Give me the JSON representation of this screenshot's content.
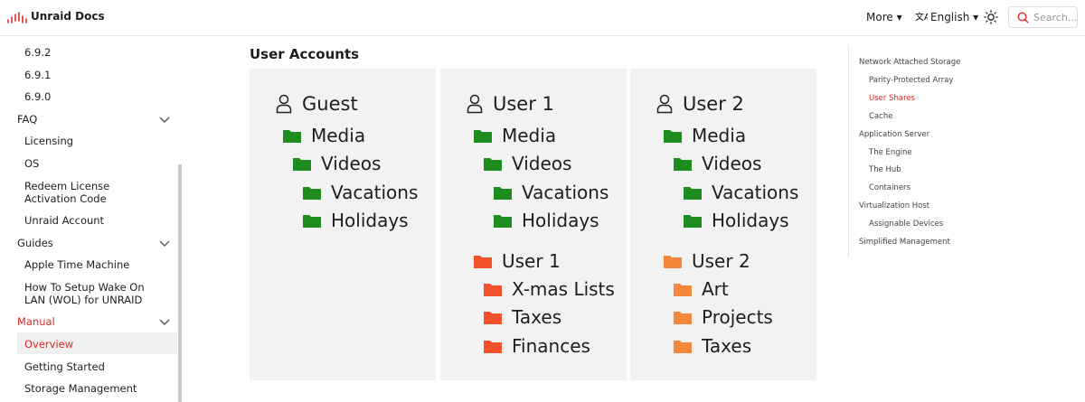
{
  "navbar": {
    "brand": "Unraid Docs",
    "more": "More",
    "language": "English",
    "search_placeholder": "Search..."
  },
  "sidebar": {
    "top_items": [
      "6.9.2",
      "6.9.1",
      "6.9.0"
    ],
    "sections": [
      {
        "title": "FAQ",
        "items": [
          "Licensing",
          "OS",
          "Redeem License Activation Code",
          "Unraid Account"
        ]
      },
      {
        "title": "Guides",
        "items": [
          "Apple Time Machine",
          "How To Setup Wake On LAN (WOL) for UNRAID"
        ]
      },
      {
        "title": "Manual",
        "items": [
          "Overview",
          "Getting Started",
          "Storage Management"
        ]
      }
    ]
  },
  "main": {
    "title": "User Accounts",
    "accounts": [
      {
        "name": "Guest",
        "folders": [
          {
            "name": "Media",
            "color": "#1e8c1e",
            "children": [
              {
                "name": "Videos",
                "children": [
                  {
                    "name": "Vacations"
                  },
                  {
                    "name": "Holidays"
                  }
                ]
              }
            ]
          }
        ]
      },
      {
        "name": "User 1",
        "folders": [
          {
            "name": "Media",
            "color": "#1e8c1e",
            "children": [
              {
                "name": "Videos",
                "children": [
                  {
                    "name": "Vacations"
                  },
                  {
                    "name": "Holidays"
                  }
                ]
              }
            ]
          },
          {
            "name": "User 1",
            "color": "#f4522d",
            "children": [
              {
                "name": "X-mas Lists"
              },
              {
                "name": "Taxes"
              },
              {
                "name": "Finances"
              }
            ]
          }
        ]
      },
      {
        "name": "User 2",
        "folders": [
          {
            "name": "Media",
            "color": "#1e8c1e",
            "children": [
              {
                "name": "Videos",
                "children": [
                  {
                    "name": "Vacations"
                  },
                  {
                    "name": "Holidays"
                  }
                ]
              }
            ]
          },
          {
            "name": "User 2",
            "color": "#f4873a",
            "children": [
              {
                "name": "Art"
              },
              {
                "name": "Projects"
              },
              {
                "name": "Taxes"
              }
            ]
          }
        ]
      }
    ]
  },
  "toc": [
    {
      "label": "Network Attached Storage",
      "items": [
        "Parity-Protected Array",
        "User Shares",
        "Cache"
      ]
    },
    {
      "label": "Application Server",
      "items": [
        "The Engine",
        "The Hub",
        "Containers"
      ]
    },
    {
      "label": "Virtualization Host",
      "items": [
        "Assignable Devices"
      ]
    },
    {
      "label": "Simplified Management",
      "items": []
    }
  ]
}
